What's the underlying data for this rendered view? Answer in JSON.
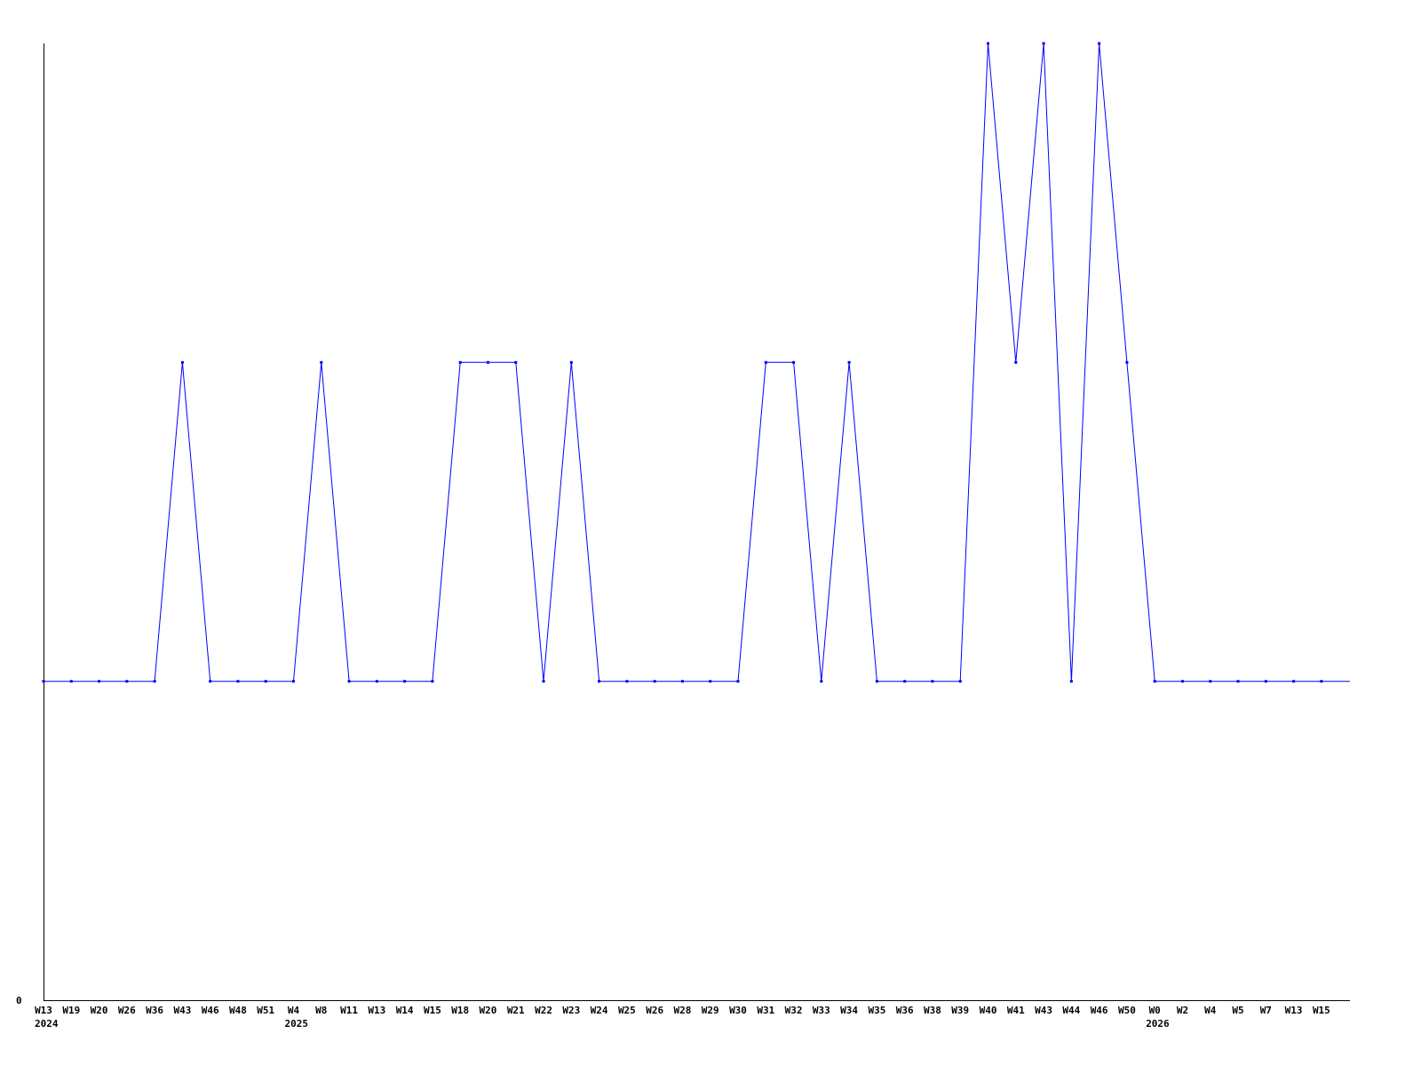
{
  "chart_data": {
    "type": "line",
    "title": "",
    "xlabel": "",
    "ylabel": "",
    "ylim": [
      0,
      3
    ],
    "y_tick_labels": [
      "0"
    ],
    "grid": false,
    "line_color": "#0000ff",
    "categories": [
      "W13",
      "W19",
      "W20",
      "W26",
      "W36",
      "W43",
      "W46",
      "W48",
      "W51",
      "W4",
      "W8",
      "W11",
      "W13",
      "W14",
      "W15",
      "W18",
      "W20",
      "W21",
      "W22",
      "W23",
      "W24",
      "W25",
      "W26",
      "W28",
      "W29",
      "W30",
      "W31",
      "W32",
      "W33",
      "W34",
      "W35",
      "W36",
      "W38",
      "W39",
      "W40",
      "W41",
      "W43",
      "W44",
      "W46",
      "W50",
      "W0",
      "W2",
      "W4",
      "W5",
      "W7",
      "W13",
      "W15"
    ],
    "year_labels": [
      {
        "index": 0,
        "label": "2024"
      },
      {
        "index": 9,
        "label": "2025"
      },
      {
        "index": 40,
        "label": "2026"
      }
    ],
    "series": [
      {
        "values": [
          1,
          1,
          1,
          1,
          1,
          2,
          1,
          1,
          1,
          1,
          2,
          1,
          1,
          1,
          1,
          2,
          2,
          2,
          1,
          2,
          1,
          1,
          1,
          1,
          1,
          1,
          2,
          2,
          1,
          2,
          1,
          1,
          1,
          1,
          3,
          2,
          3,
          1,
          3,
          2,
          1,
          1,
          1,
          1,
          1,
          1,
          1
        ]
      }
    ]
  }
}
